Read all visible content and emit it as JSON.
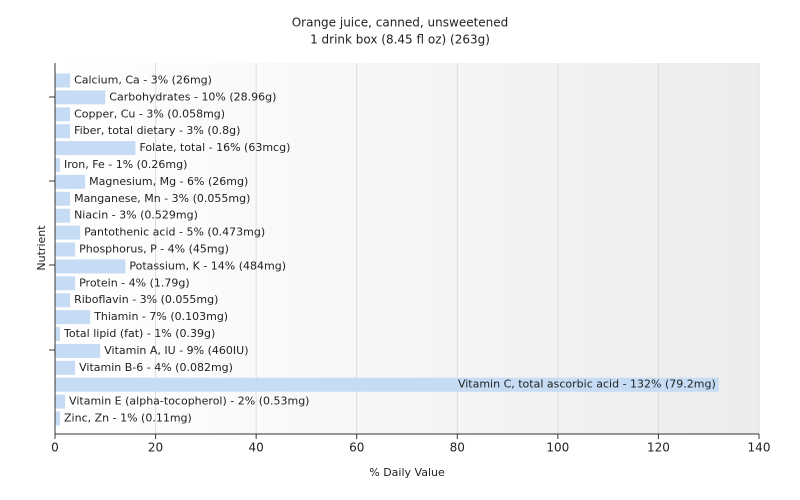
{
  "chart_data": {
    "type": "bar",
    "orientation": "horizontal",
    "title": "Orange juice, canned, unsweetened",
    "subtitle": "1 drink box (8.45 fl oz) (263g)",
    "x_label": "% Daily Value",
    "y_label": "Nutrient",
    "categories": [
      "Calcium, Ca - 3% (26mg)",
      "Carbohydrates - 10% (28.96g)",
      "Copper, Cu - 3% (0.058mg)",
      "Fiber, total dietary - 3% (0.8g)",
      "Folate, total - 16% (63mcg)",
      "Iron, Fe - 1% (0.26mg)",
      "Magnesium, Mg - 6% (26mg)",
      "Manganese, Mn - 3% (0.055mg)",
      "Niacin - 3% (0.529mg)",
      "Pantothenic acid - 5% (0.473mg)",
      "Phosphorus, P - 4% (45mg)",
      "Potassium, K - 14% (484mg)",
      "Protein - 4% (1.79g)",
      "Riboflavin - 3% (0.055mg)",
      "Thiamin - 7% (0.103mg)",
      "Total lipid (fat) - 1% (0.39g)",
      "Vitamin A, IU - 9% (460IU)",
      "Vitamin B-6 - 4% (0.082mg)",
      "Vitamin C, total ascorbic acid - 132% (79.2mg)",
      "Vitamin E (alpha-tocopherol) - 2% (0.53mg)",
      "Zinc, Zn - 1% (0.11mg)"
    ],
    "values": [
      3,
      10,
      3,
      3,
      16,
      1,
      6,
      3,
      3,
      5,
      4,
      14,
      4,
      3,
      7,
      1,
      9,
      4,
      132,
      2,
      1
    ],
    "color": "#c6dcf5",
    "xlim": [
      0,
      140
    ],
    "xticks": [
      0,
      20,
      40,
      60,
      80,
      100,
      120,
      140
    ],
    "grid": true
  }
}
